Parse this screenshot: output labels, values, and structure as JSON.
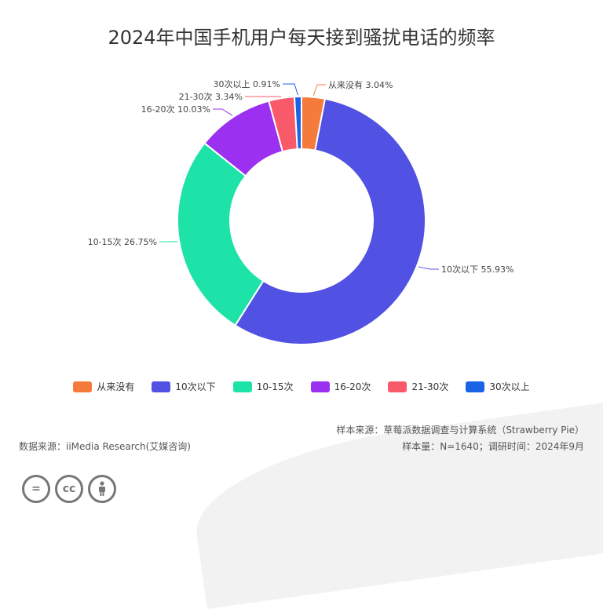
{
  "title": "2024年中国手机用户每天接到骚扰电话的频率",
  "chart_data": {
    "type": "pie",
    "style": "donut",
    "title": "2024年中国手机用户每天接到骚扰电话的频率",
    "slices": [
      {
        "label": "从来没有",
        "value": 3.04,
        "display": "从来没有 3.04%",
        "color": "#f47b3c"
      },
      {
        "label": "10次以下",
        "value": 55.93,
        "display": "10次以下 55.93%",
        "color": "#5151e3"
      },
      {
        "label": "10-15次",
        "value": 26.75,
        "display": "10-15次 26.75%",
        "color": "#1de3a8"
      },
      {
        "label": "16-20次",
        "value": 10.03,
        "display": "16-20次 10.03%",
        "color": "#9b30f0"
      },
      {
        "label": "21-30次",
        "value": 3.34,
        "display": "21-30次 3.34%",
        "color": "#f85a6a"
      },
      {
        "label": "30次以上",
        "value": 0.91,
        "display": "30次以上 0.91%",
        "color": "#1a62e6"
      }
    ],
    "legend_position": "bottom"
  },
  "footer": {
    "sample_source": "样本来源：草莓派数据调查与计算系统（Strawberry Pie）",
    "sample_size": "样本量：N=1640；调研时间：2024年9月",
    "data_source": "数据来源：iiMedia Research(艾媒咨询)"
  },
  "icons": [
    "equals-icon",
    "cc-icon",
    "person-icon"
  ]
}
